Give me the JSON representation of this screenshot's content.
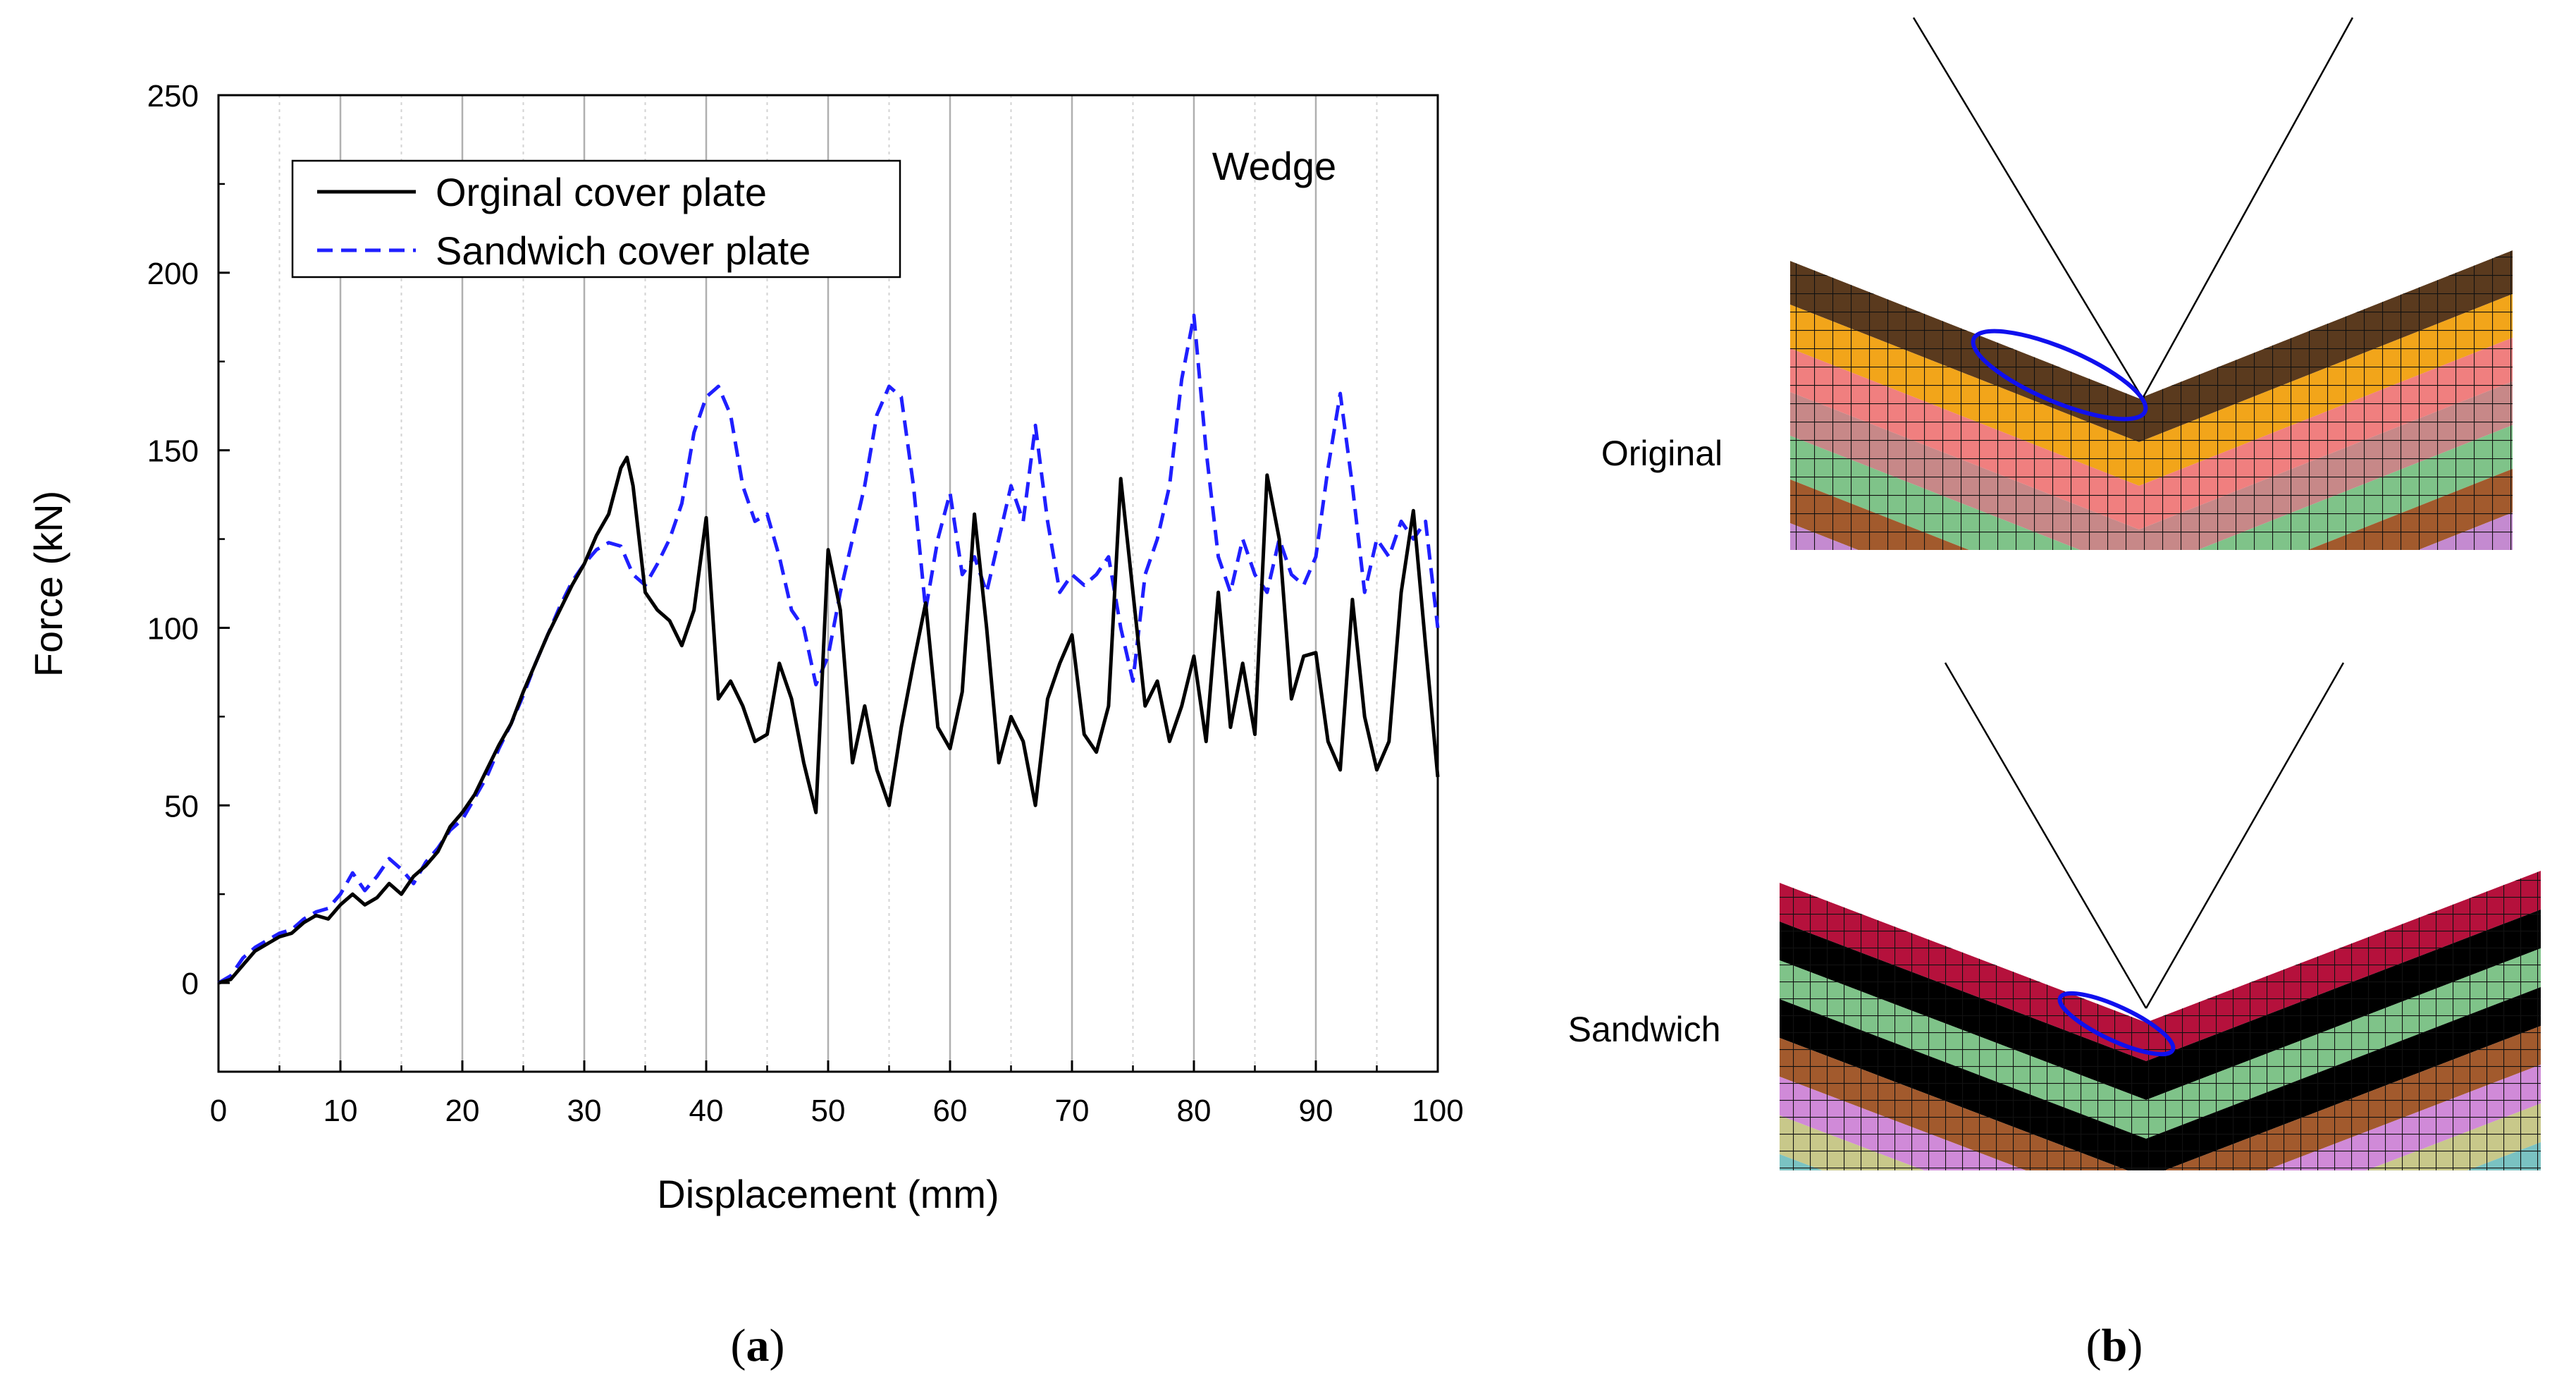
{
  "chart_data": {
    "type": "line",
    "title": "Wedge",
    "xlabel": "Displacement (mm)",
    "ylabel": "Force (kN)",
    "xlim": [
      0,
      100
    ],
    "ylim": [
      -25,
      250
    ],
    "xticks": [
      0,
      10,
      20,
      30,
      40,
      50,
      60,
      70,
      80,
      90,
      100
    ],
    "yticks": [
      0,
      50,
      100,
      150,
      200,
      250
    ],
    "grid": "vertical",
    "legend_position": "top-left",
    "series": [
      {
        "name": "Orginal cover plate",
        "color": "#000000",
        "dash": "solid",
        "x": [
          0,
          1,
          2,
          3,
          4,
          5,
          6,
          7,
          8,
          9,
          10,
          11,
          12,
          13,
          14,
          15,
          16,
          17,
          18,
          19,
          20,
          21,
          22,
          23,
          24,
          25,
          26,
          27,
          28,
          29,
          30,
          31,
          32,
          33,
          33.5,
          34,
          35,
          36,
          37,
          38,
          39,
          40,
          41,
          42,
          43,
          44,
          45,
          46,
          47,
          48,
          49,
          50,
          51,
          52,
          53,
          54,
          55,
          56,
          57,
          58,
          59,
          60,
          61,
          62,
          63,
          64,
          65,
          66,
          67,
          68,
          69,
          70,
          71,
          72,
          73,
          74,
          75,
          76,
          77,
          78,
          79,
          80,
          81,
          82,
          83,
          84,
          85,
          86,
          87,
          88,
          89,
          90,
          91,
          92,
          93,
          94,
          95,
          96,
          97,
          98,
          99,
          100
        ],
        "y": [
          0,
          1,
          5,
          9,
          11,
          13,
          14,
          17,
          19,
          18,
          22,
          25,
          22,
          24,
          28,
          25,
          30,
          33,
          37,
          44,
          48,
          53,
          60,
          67,
          73,
          82,
          90,
          98,
          105,
          112,
          118,
          126,
          132,
          145,
          148,
          140,
          110,
          105,
          102,
          95,
          105,
          131,
          80,
          85,
          78,
          68,
          70,
          90,
          80,
          62,
          48,
          122,
          105,
          62,
          78,
          60,
          50,
          72,
          90,
          107,
          72,
          66,
          82,
          132,
          100,
          62,
          75,
          68,
          50,
          80,
          90,
          98,
          70,
          65,
          78,
          142,
          110,
          78,
          85,
          68,
          78,
          92,
          68,
          110,
          72,
          90,
          70,
          143,
          125,
          80,
          92,
          93,
          68,
          60,
          108,
          75,
          60,
          68,
          110,
          133,
          95,
          58
        ]
      },
      {
        "name": "Sandwich cover plate",
        "color": "#1f1fff",
        "dash": "dashed",
        "x": [
          0,
          1,
          2,
          3,
          4,
          5,
          6,
          7,
          8,
          9,
          10,
          11,
          12,
          13,
          14,
          15,
          16,
          17,
          18,
          19,
          20,
          21,
          22,
          23,
          24,
          25,
          26,
          27,
          28,
          29,
          30,
          31,
          32,
          33,
          34,
          35,
          36,
          37,
          38,
          39,
          40,
          41,
          42,
          43,
          44,
          45,
          46,
          47,
          48,
          49,
          50,
          51,
          52,
          53,
          54,
          55,
          56,
          57,
          58,
          59,
          60,
          61,
          62,
          63,
          64,
          65,
          66,
          67,
          68,
          69,
          70,
          71,
          72,
          73,
          74,
          75,
          76,
          77,
          78,
          79,
          80,
          81,
          82,
          83,
          84,
          85,
          86,
          87,
          88,
          89,
          90,
          91,
          92,
          93,
          94,
          95,
          96,
          97,
          98,
          99,
          100
        ],
        "y": [
          0,
          2,
          7,
          10,
          12,
          14,
          15,
          18,
          20,
          21,
          25,
          31,
          26,
          30,
          35,
          32,
          28,
          34,
          38,
          43,
          46,
          52,
          58,
          66,
          73,
          81,
          90,
          98,
          106,
          113,
          118,
          122,
          124,
          123,
          115,
          112,
          118,
          125,
          135,
          155,
          165,
          168,
          160,
          140,
          130,
          132,
          120,
          105,
          100,
          84,
          92,
          110,
          125,
          140,
          160,
          168,
          165,
          140,
          105,
          125,
          138,
          115,
          120,
          110,
          125,
          140,
          130,
          157,
          130,
          110,
          115,
          112,
          115,
          120,
          100,
          85,
          115,
          125,
          140,
          170,
          188,
          150,
          120,
          110,
          125,
          115,
          110,
          125,
          115,
          112,
          120,
          145,
          166,
          140,
          110,
          125,
          120,
          130,
          125,
          130,
          100
        ]
      }
    ]
  },
  "panel_b": {
    "label_original": "Original",
    "label_sandwich": "Sandwich",
    "layer_colors_original": [
      "#5a3a1e",
      "#f2a51a",
      "#f07f7f",
      "#c78888",
      "#7fc389",
      "#a25a2d",
      "#c48ad0"
    ],
    "layer_colors_sandwich": [
      "#b5113c",
      "#000000",
      "#7fc389",
      "#000000",
      "#a25a2d",
      "#d08ad8",
      "#c8c88a",
      "#7ac2c2"
    ],
    "highlight_color": "#1010ee"
  },
  "captions": {
    "a_open": "(",
    "a_letter": "a",
    "a_close": ")",
    "b_open": "(",
    "b_letter": "b",
    "b_close": ")"
  }
}
